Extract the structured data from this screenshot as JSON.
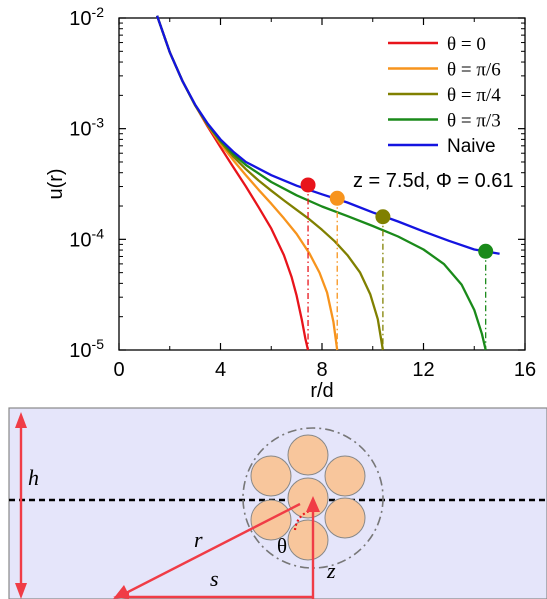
{
  "chart_data": {
    "type": "line",
    "xlabel": "r/d",
    "ylabel": "u(r)",
    "xlim": [
      0,
      16
    ],
    "ylim": [
      1e-05,
      0.01
    ],
    "yscale": "log",
    "x_ticks": [
      {
        "value": 0,
        "label": "0"
      },
      {
        "value": 4,
        "label": "4"
      },
      {
        "value": 8,
        "label": "8"
      },
      {
        "value": 12,
        "label": "12"
      },
      {
        "value": 16,
        "label": "16"
      }
    ],
    "y_ticks": [
      {
        "exp": -5,
        "base": "10",
        "sup": "-5"
      },
      {
        "exp": -4,
        "base": "10",
        "sup": "-4"
      },
      {
        "exp": -3,
        "base": "10",
        "sup": "-3"
      },
      {
        "exp": -2,
        "base": "10",
        "sup": "-2"
      }
    ],
    "legend_position": "top-right",
    "annotation": "z = 7.5d, Φ = 0.61",
    "series": [
      {
        "name": "θ = 0",
        "color": "#e8141b",
        "x": [
          1.5,
          2.0,
          2.5,
          3.0,
          3.5,
          4.0,
          4.5,
          5.0,
          5.5,
          6.0,
          6.5,
          6.8,
          7.0,
          7.2,
          7.35,
          7.45
        ],
        "y": [
          0.0105,
          0.0049,
          0.0027,
          0.00163,
          0.00104,
          0.00068,
          0.00045,
          0.0003,
          0.000195,
          0.000125,
          7.2e-05,
          4.6e-05,
          3.1e-05,
          1.9e-05,
          1.25e-05,
          1e-05
        ],
        "cutoff": {
          "x": 7.45,
          "y": 0.00031
        }
      },
      {
        "name": "θ = π/6",
        "color": "#f7941d",
        "x": [
          1.5,
          2.0,
          2.5,
          3.0,
          3.5,
          4.0,
          4.5,
          5.0,
          5.5,
          6.0,
          6.5,
          7.0,
          7.5,
          7.9,
          8.2,
          8.45,
          8.6
        ],
        "y": [
          0.0105,
          0.0049,
          0.0027,
          0.00163,
          0.00107,
          0.00073,
          0.00052,
          0.00038,
          0.00028,
          0.00021,
          0.000155,
          0.000112,
          7.5e-05,
          5e-05,
          3.3e-05,
          1.8e-05,
          1e-05
        ],
        "cutoff": {
          "x": 8.6,
          "y": 0.000235
        }
      },
      {
        "name": "θ = π/4",
        "color": "#808000",
        "x": [
          1.5,
          2.0,
          2.5,
          3.0,
          3.5,
          4.0,
          4.5,
          5.0,
          5.5,
          6.0,
          6.5,
          7.0,
          7.5,
          8.0,
          8.5,
          9.0,
          9.5,
          9.9,
          10.2,
          10.4
        ],
        "y": [
          0.0105,
          0.0049,
          0.0027,
          0.00163,
          0.00108,
          0.00076,
          0.00056,
          0.00043,
          0.00034,
          0.000275,
          0.000225,
          0.000185,
          0.000152,
          0.000122,
          9.6e-05,
          7.2e-05,
          5e-05,
          3.2e-05,
          1.9e-05,
          1e-05
        ],
        "cutoff": {
          "x": 10.4,
          "y": 0.00016
        }
      },
      {
        "name": "θ = π/3",
        "color": "#1a8a1a",
        "x": [
          1.5,
          2.0,
          2.5,
          3.0,
          3.5,
          4.0,
          4.5,
          5.0,
          6.0,
          7.0,
          8.0,
          9.0,
          10.0,
          11.0,
          12.0,
          12.8,
          13.5,
          14.0,
          14.3,
          14.45
        ],
        "y": [
          0.0105,
          0.0049,
          0.0027,
          0.00164,
          0.00109,
          0.00078,
          0.00059,
          0.00047,
          0.00033,
          0.00025,
          0.000198,
          0.000162,
          0.000132,
          0.000106,
          8.1e-05,
          6e-05,
          3.9e-05,
          2.3e-05,
          1.4e-05,
          1e-05
        ],
        "cutoff": {
          "x": 14.45,
          "y": 7.8e-05
        }
      },
      {
        "name": "Naive",
        "color": "#1414e0",
        "x": [
          1.5,
          2.0,
          2.5,
          3.0,
          3.5,
          4.0,
          4.5,
          5.0,
          6.0,
          7.0,
          8.0,
          9.0,
          10.0,
          11.0,
          12.0,
          13.0,
          14.0,
          15.0
        ],
        "y": [
          0.0105,
          0.0049,
          0.0027,
          0.00165,
          0.00111,
          0.0008,
          0.00062,
          0.0005,
          0.00038,
          0.000305,
          0.000255,
          0.000215,
          0.000175,
          0.000145,
          0.000118,
          9.7e-05,
          8.1e-05,
          7.4e-05
        ]
      }
    ]
  },
  "diagram": {
    "background_color": "#e5e5fa",
    "arrow_color": "#f03c46",
    "particle_color": "#f8c69c",
    "labels": {
      "h": "h",
      "r": "r",
      "s": "s",
      "z": "z",
      "theta": "θ"
    }
  }
}
